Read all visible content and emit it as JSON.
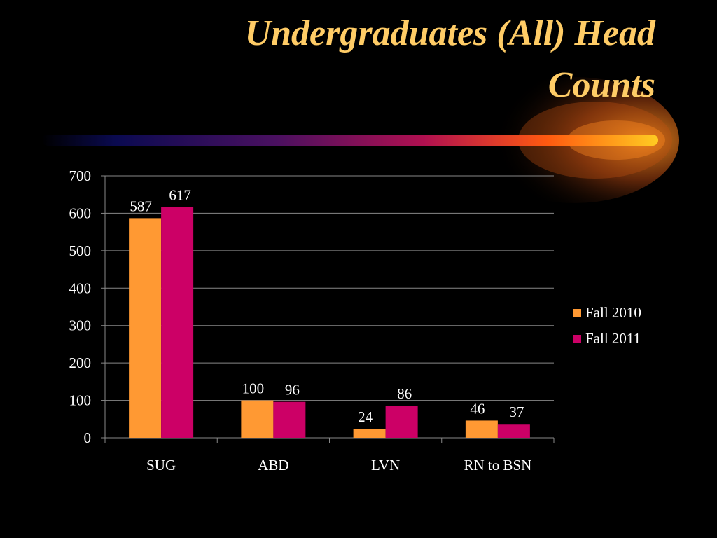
{
  "slide": {
    "title_lines": [
      "Undergraduates (All) Head",
      "Counts"
    ]
  },
  "colors": {
    "title": "#FFCC66",
    "background": "#000000",
    "text": "#FFFFFF",
    "gridline": "#888888"
  },
  "chart_data": {
    "type": "bar",
    "title": "",
    "xlabel": "",
    "ylabel": "",
    "categories": [
      "SUG",
      "ABD",
      "LVN",
      "RN to BSN"
    ],
    "series": [
      {
        "name": "Fall 2010",
        "values": [
          587,
          100,
          24,
          46
        ],
        "color": "#FF9933"
      },
      {
        "name": "Fall 2011",
        "values": [
          617,
          96,
          86,
          37
        ],
        "color": "#CC0066"
      }
    ],
    "ylim": [
      0,
      700
    ],
    "yticks": [
      0,
      100,
      200,
      300,
      400,
      500,
      600,
      700
    ],
    "grid": true,
    "data_labels": true,
    "legend_position": "right"
  }
}
